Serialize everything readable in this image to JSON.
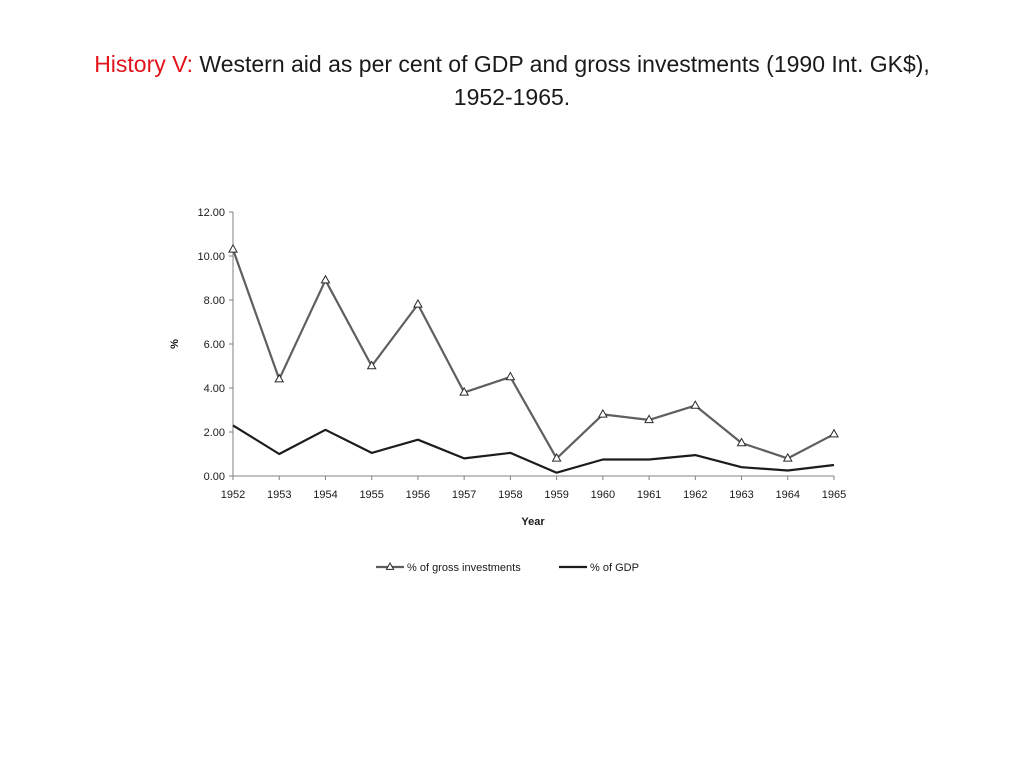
{
  "slide": {
    "title_prefix": "History V:",
    "title_main": "Western aid as per cent of GDP and gross investments (1990 Int. GK$),",
    "title_line2": "1952-1965."
  },
  "colors": {
    "title_accent": "#e3131b",
    "series_gross": "#5f5f5f",
    "series_gdp": "#1c1c1c",
    "axis": "#808080"
  },
  "chart_data": {
    "type": "line",
    "xlabel": "Year",
    "ylabel": "%",
    "ylim": [
      0,
      12
    ],
    "yticks": [
      "0.00",
      "2.00",
      "4.00",
      "6.00",
      "8.00",
      "10.00",
      "12.00"
    ],
    "categories": [
      "1952",
      "1953",
      "1954",
      "1955",
      "1956",
      "1957",
      "1958",
      "1959",
      "1960",
      "1961",
      "1962",
      "1963",
      "1964",
      "1965"
    ],
    "grid": false,
    "legend_position": "bottom",
    "series": [
      {
        "name": "% of gross investments",
        "marker": "triangle",
        "values": [
          10.3,
          4.4,
          8.9,
          5.0,
          7.8,
          3.8,
          4.5,
          0.8,
          2.8,
          2.55,
          3.2,
          1.5,
          0.8,
          1.9
        ]
      },
      {
        "name": "% of GDP",
        "marker": "none",
        "values": [
          2.3,
          1.0,
          2.1,
          1.05,
          1.65,
          0.8,
          1.05,
          0.15,
          0.75,
          0.75,
          0.95,
          0.4,
          0.25,
          0.5
        ]
      }
    ]
  }
}
